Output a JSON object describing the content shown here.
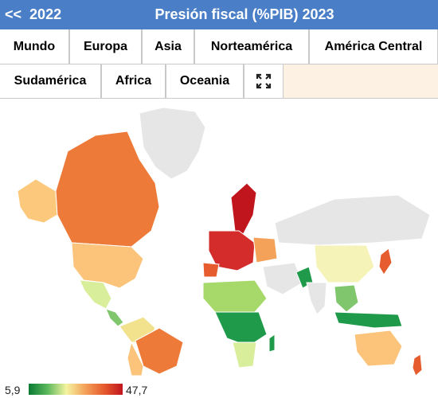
{
  "header": {
    "back_label": "<<",
    "prev_year": "2022",
    "title": "Presión fiscal (%PIB) 2023"
  },
  "tabs_row1": [
    "Mundo",
    "Europa",
    "Asia",
    "Norteamérica",
    "América Central"
  ],
  "tabs_row2": [
    "Sudamérica",
    "Africa",
    "Oceania"
  ],
  "fullscreen_icon": "expand-icon",
  "legend": {
    "min": "5,9",
    "max": "47,7"
  },
  "colors": {
    "header": "#4a7fc7",
    "low": "#0a7a33",
    "high": "#c0151d",
    "nodata": "#e6e6e6"
  }
}
